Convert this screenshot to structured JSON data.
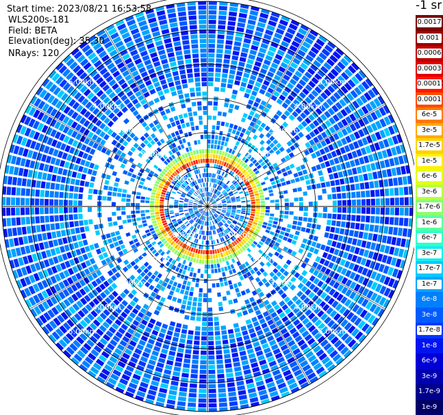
{
  "header": {
    "start_time": "Start time: 2023/08/21 16:53:58",
    "instrument": "WLS200s-181",
    "field": "Field: BETA",
    "elevation": "Elevation(deg): 35.30",
    "nrays": "NRays: 120"
  },
  "colorbar": {
    "unit_title": "-1 sr",
    "entries": [
      {
        "label": "0.0017",
        "color": "#7a0000",
        "style": "light"
      },
      {
        "label": "0.001",
        "color": "#9c0000",
        "style": "light"
      },
      {
        "label": "0.0006",
        "color": "#c00000",
        "style": "light"
      },
      {
        "label": "0.0003",
        "color": "#e40000",
        "style": "light"
      },
      {
        "label": "0.00017",
        "color": "#ff1800",
        "style": "light"
      },
      {
        "label": "0.0001",
        "color": "#ff4a00",
        "style": "light"
      },
      {
        "label": "6e-5",
        "color": "#ff7a00",
        "style": "light"
      },
      {
        "label": "3e-5",
        "color": "#ffaa00",
        "style": "light"
      },
      {
        "label": "1.7e-5",
        "color": "#ffd200",
        "style": "light"
      },
      {
        "label": "1e-5",
        "color": "#fff000",
        "style": "light"
      },
      {
        "label": "6e-6",
        "color": "#e2ff14",
        "style": "light"
      },
      {
        "label": "3e-6",
        "color": "#b6ff40",
        "style": "light"
      },
      {
        "label": "1.7e-6",
        "color": "#8aff6e",
        "style": "light"
      },
      {
        "label": "1e-6",
        "color": "#5cff9c",
        "style": "light"
      },
      {
        "label": "6e-7",
        "color": "#30ffc8",
        "style": "light"
      },
      {
        "label": "3e-7",
        "color": "#10f0ee",
        "style": "light"
      },
      {
        "label": "1.7e-7",
        "color": "#00ccff",
        "style": "light"
      },
      {
        "label": "1e-7",
        "color": "#00a4ff",
        "style": "light"
      },
      {
        "label": "6e-8",
        "color": "#0080ff",
        "style": "dark"
      },
      {
        "label": "3e-8",
        "color": "#005cff",
        "style": "dark"
      },
      {
        "label": "1.7e-8",
        "color": "#0038ff",
        "style": "light"
      },
      {
        "label": "1e-8",
        "color": "#0014f0",
        "style": "dark"
      },
      {
        "label": "6e-9",
        "color": "#0000d6",
        "style": "dark"
      },
      {
        "label": "3e-9",
        "color": "#0000b0",
        "style": "dark"
      },
      {
        "label": "1.7e-9",
        "color": "#00008c",
        "style": "dark"
      },
      {
        "label": "1e-9",
        "color": "#000068",
        "style": "dark"
      }
    ]
  },
  "chart_data": {
    "type": "heatmap",
    "projection": "polar",
    "field": "BETA",
    "elevation_deg": 35.3,
    "n_rays": 120,
    "range_rings_km": [
      1,
      2,
      3,
      4,
      5,
      6
    ],
    "ring_labels": [
      "1.00km",
      "2.00km",
      "3.00km",
      "4.00km",
      "5.00km"
    ],
    "sector_line_directions_deg": [
      0,
      30,
      60,
      90,
      120,
      150,
      180,
      210,
      240,
      270,
      300,
      330
    ],
    "color_scale": "log",
    "color_range": [
      1e-09,
      0.0017
    ],
    "background_level": 3e-08,
    "high_return_ring_km": [
      0.5,
      1.0
    ],
    "high_return_peak_level": 0.0003
  }
}
